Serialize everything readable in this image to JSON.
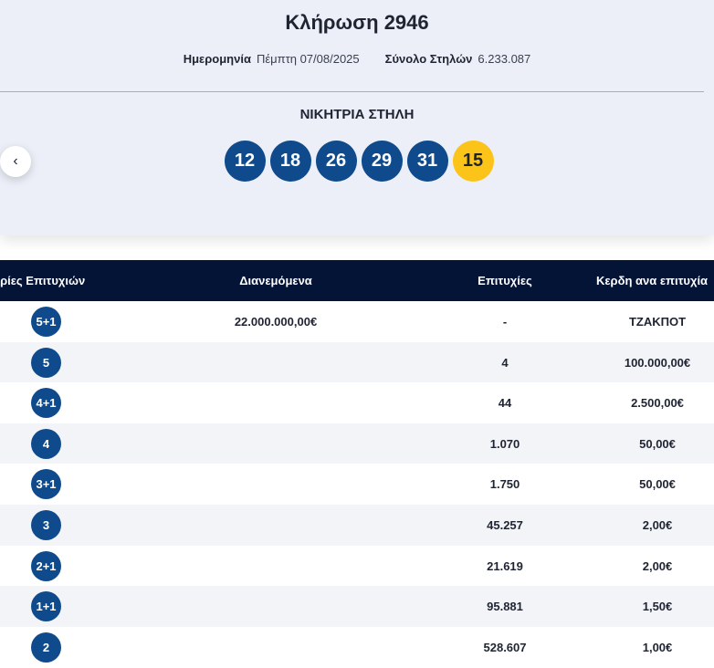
{
  "header": {
    "title": "Κλήρωση 2946",
    "date_label": "Ημερομηνία",
    "date_value": "Πέμπτη 07/08/2025",
    "columns_label": "Σύνολο Στηλών",
    "columns_value": "6.233.087"
  },
  "winning": {
    "label": "ΝΙΚΗΤΡΙΑ ΣΤΗΛΗ",
    "numbers": [
      "12",
      "18",
      "26",
      "29",
      "31"
    ],
    "joker": "15"
  },
  "nav": {
    "prev_icon": "chevron-left-icon",
    "prev_glyph": "‹"
  },
  "table": {
    "headers": {
      "category": "ηγορίες Επιτυχιών",
      "distributed": "Διανεμόμενα",
      "wins": "Επιτυχίες",
      "prize": "Κερδη ανα επιτυχία"
    },
    "rows": [
      {
        "category": "5+1",
        "distributed": "22.000.000,00€",
        "wins": "-",
        "prize": "ΤΖΑΚΠΟΤ"
      },
      {
        "category": "5",
        "distributed": "",
        "wins": "4",
        "prize": "100.000,00€"
      },
      {
        "category": "4+1",
        "distributed": "",
        "wins": "44",
        "prize": "2.500,00€"
      },
      {
        "category": "4",
        "distributed": "",
        "wins": "1.070",
        "prize": "50,00€"
      },
      {
        "category": "3+1",
        "distributed": "",
        "wins": "1.750",
        "prize": "50,00€"
      },
      {
        "category": "3",
        "distributed": "",
        "wins": "45.257",
        "prize": "2,00€"
      },
      {
        "category": "2+1",
        "distributed": "",
        "wins": "21.619",
        "prize": "2,00€"
      },
      {
        "category": "1+1",
        "distributed": "",
        "wins": "95.881",
        "prize": "1,50€"
      },
      {
        "category": "2",
        "distributed": "",
        "wins": "528.607",
        "prize": "1,00€"
      }
    ]
  },
  "colors": {
    "ball": "#0f4b8c",
    "joker": "#fcc419",
    "table_header": "#041436",
    "card_bg": "#eceff8"
  }
}
